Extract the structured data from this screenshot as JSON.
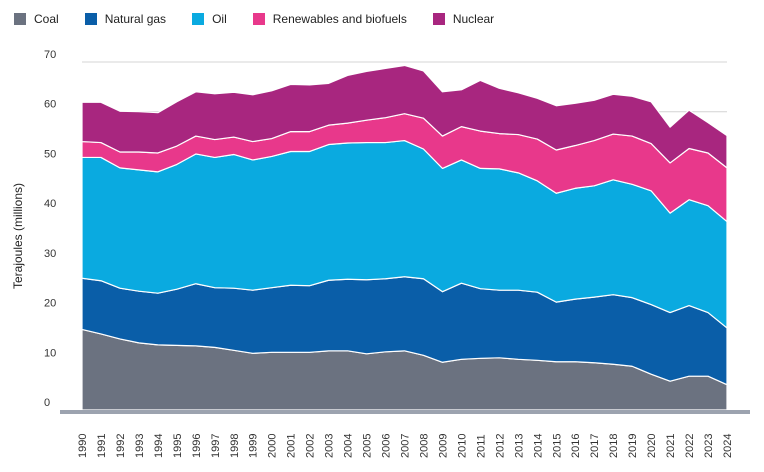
{
  "chart_data": {
    "type": "area",
    "stacked": true,
    "title": "",
    "xlabel": "",
    "ylabel": "Terajoules (millions)",
    "ylim": [
      0,
      70
    ],
    "yticks": [
      0,
      10,
      20,
      30,
      40,
      50,
      60,
      70
    ],
    "grid": true,
    "legend": "top-left",
    "x": [
      1990,
      1991,
      1992,
      1993,
      1994,
      1995,
      1996,
      1997,
      1998,
      1999,
      2000,
      2001,
      2002,
      2003,
      2004,
      2005,
      2006,
      2007,
      2008,
      2009,
      2010,
      2011,
      2012,
      2013,
      2014,
      2015,
      2016,
      2017,
      2018,
      2019,
      2020,
      2021,
      2022,
      2023,
      2024
    ],
    "x_labels": [
      "1990",
      "1991",
      "1992",
      "1993",
      "1994",
      "1995",
      "1996",
      "1997",
      "1998",
      "1999",
      "2000",
      "2001",
      "2002",
      "2003",
      "2004",
      "2005",
      "2006",
      "2007",
      "2008",
      "2009",
      "2010",
      "2011",
      "2012",
      "2013",
      "2014",
      "2015",
      "2016",
      "2017",
      "2018",
      "2019",
      "2020",
      "2021",
      "2022",
      "2023",
      "2024"
    ],
    "series": [
      {
        "name": "Coal",
        "color": "#6b7280",
        "values": [
          16.2,
          15.3,
          14.3,
          13.5,
          13.1,
          13.0,
          12.9,
          12.6,
          12.0,
          11.4,
          11.6,
          11.6,
          11.6,
          11.9,
          11.9,
          11.3,
          11.7,
          11.9,
          11.0,
          9.6,
          10.2,
          10.4,
          10.5,
          10.2,
          10.0,
          9.7,
          9.7,
          9.5,
          9.2,
          8.8,
          7.2,
          5.8,
          6.8,
          6.8,
          5.1
        ]
      },
      {
        "name": "Natural gas",
        "color": "#0a5ea8",
        "values": [
          10.3,
          10.7,
          10.2,
          10.4,
          10.4,
          11.3,
          12.5,
          12.0,
          12.5,
          12.7,
          13.0,
          13.5,
          13.4,
          14.2,
          14.4,
          14.9,
          14.7,
          14.9,
          15.4,
          14.2,
          15.3,
          14.0,
          13.6,
          13.9,
          13.7,
          12.0,
          12.6,
          13.2,
          14.0,
          13.8,
          14.0,
          13.8,
          14.2,
          12.8,
          11.4
        ]
      },
      {
        "name": "Oil",
        "color": "#0aaae0",
        "values": [
          24.3,
          24.8,
          24.2,
          24.4,
          24.4,
          25.1,
          26.1,
          26.2,
          26.9,
          26.2,
          26.4,
          26.9,
          27.0,
          27.3,
          27.4,
          27.6,
          27.4,
          27.4,
          26.1,
          24.8,
          24.8,
          24.2,
          24.4,
          23.6,
          22.4,
          21.9,
          22.3,
          22.4,
          23.1,
          22.8,
          22.9,
          20.0,
          21.3,
          21.5,
          21.4
        ]
      },
      {
        "name": "Renewables and biofuels",
        "color": "#e8388b",
        "values": [
          3.2,
          3.0,
          3.2,
          3.6,
          3.8,
          3.7,
          3.6,
          3.6,
          3.5,
          3.7,
          3.6,
          4.0,
          4.0,
          3.9,
          4.0,
          4.5,
          5.0,
          5.4,
          6.2,
          6.5,
          6.7,
          7.5,
          7.1,
          7.7,
          8.4,
          8.7,
          8.6,
          9.1,
          9.2,
          9.7,
          9.5,
          10.1,
          10.3,
          10.6,
          10.8
        ]
      },
      {
        "name": "Nuclear",
        "color": "#a8267f",
        "values": [
          7.9,
          8.1,
          8.2,
          8.1,
          8.1,
          8.9,
          8.9,
          9.2,
          9.0,
          9.4,
          9.6,
          9.5,
          9.4,
          8.4,
          9.6,
          9.8,
          9.9,
          9.7,
          9.5,
          8.9,
          7.4,
          10.2,
          9.1,
          8.4,
          8.2,
          8.9,
          8.5,
          8.1,
          8.0,
          8.0,
          8.4,
          7.2,
          7.7,
          6.1,
          6.5
        ]
      }
    ]
  }
}
